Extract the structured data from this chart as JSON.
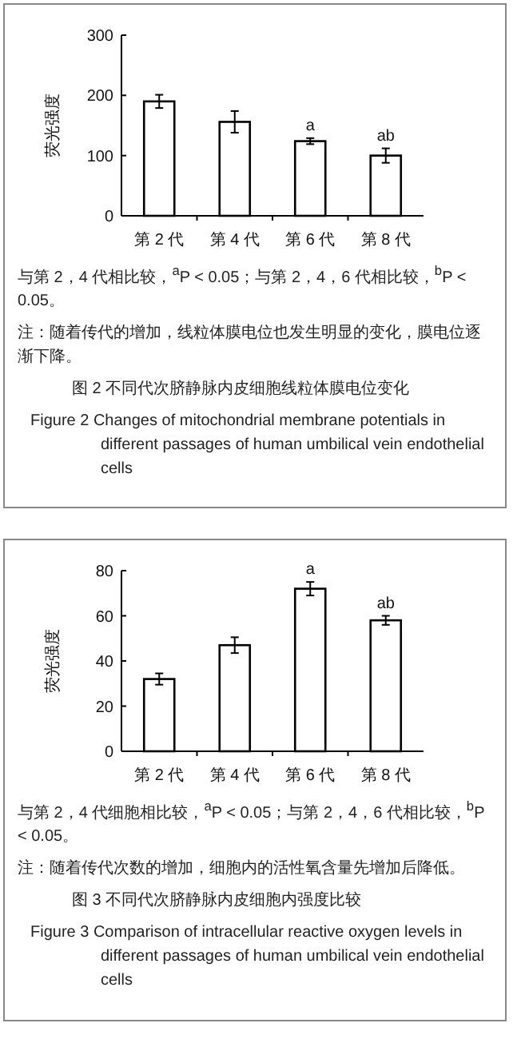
{
  "chart_data": [
    {
      "type": "bar",
      "title": "图 2 不同代次脐静脉内皮细胞线粒体膜电位变化",
      "subtitle": "Figure 2 Changes of mitochondrial membrane potentials in different passages of human umbilical vein endothelial cells",
      "ylabel": "荧光强度",
      "categories": [
        "第 2 代",
        "第 4 代",
        "第 6 代",
        "第 8 代"
      ],
      "values": [
        190,
        156,
        124,
        100
      ],
      "errors": [
        11,
        18,
        5,
        12
      ],
      "color": "#ffffff",
      "ylim": [
        0,
        300
      ],
      "yticks": [
        0,
        100,
        200,
        300
      ],
      "annotations": [
        {
          "text": "a",
          "x": "第 6 代",
          "y": 129
        },
        {
          "text": "ab",
          "x": "第 8 代",
          "y": 112
        },
        "与第 2，4 代相比较，$^{a}$P < 0.05；与第 2，4，6 代相比较，$^{b}$P < 0.05。",
        "注：随着传代的增加，线粒体膜电位也发生明显的变化，膜电位逐渐下降。"
      ]
    },
    {
      "type": "bar",
      "title": "图 3 不同代次脐静脉内皮细胞内强度比较",
      "subtitle": "Figure 3 Comparison of intracellular reactive oxygen levels in different passages of human umbilical vein endothelial cells",
      "ylabel": "荧光强度",
      "categories": [
        "第 2 代",
        "第 4 代",
        "第 6 代",
        "第 8 代"
      ],
      "values": [
        32,
        47,
        72,
        58
      ],
      "errors": [
        2.5,
        3.5,
        3,
        2
      ],
      "color": "#ffffff",
      "ylim": [
        0,
        80
      ],
      "yticks": [
        0,
        20,
        40,
        60,
        80
      ],
      "annotations": [
        {
          "text": "a",
          "x": "第 6 代",
          "y": 75
        },
        {
          "text": "ab",
          "x": "第 8 代",
          "y": 60
        },
        "与第 2，4 代细胞相比较，$^{a}$P < 0.05；与第 2，4，6 代相比较，$^{b}$P < 0.05。",
        "注：随着传代次数的增加，细胞内的活性氧含量先增加后降低。"
      ]
    }
  ]
}
